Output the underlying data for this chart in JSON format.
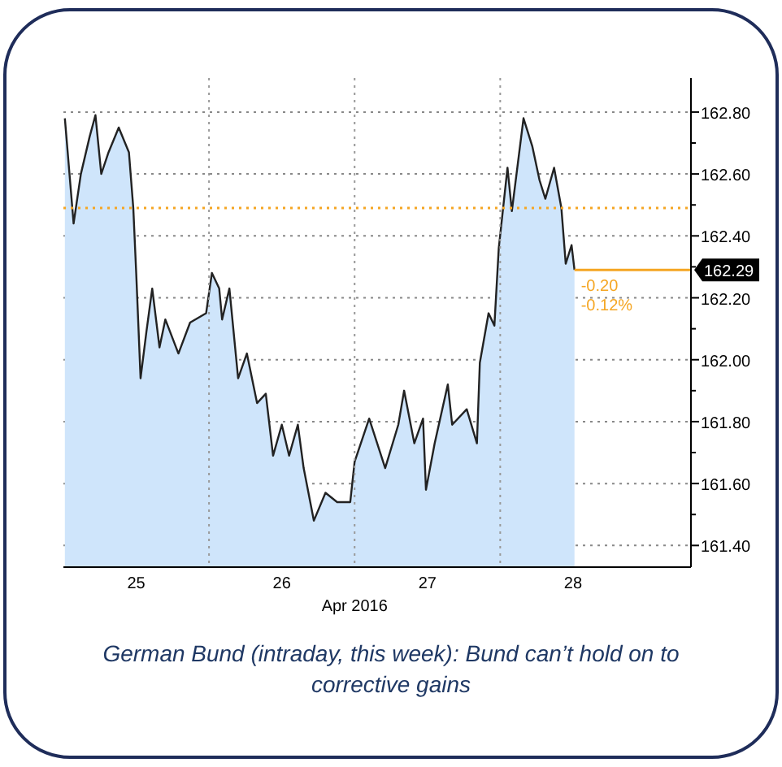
{
  "chart_data": {
    "type": "area",
    "xlabel": "Apr 2016",
    "x": [
      24.51,
      24.57,
      24.62,
      24.68,
      24.72,
      24.76,
      24.81,
      24.88,
      24.95,
      24.98,
      25.0,
      25.03,
      25.07,
      25.11,
      25.16,
      25.2,
      25.29,
      25.37,
      25.48,
      25.52,
      25.57,
      25.59,
      25.64,
      25.7,
      25.76,
      25.83,
      25.89,
      25.94,
      26.0,
      26.05,
      26.11,
      26.15,
      26.22,
      26.3,
      26.38,
      26.47,
      26.5,
      26.6,
      26.71,
      26.8,
      26.84,
      26.91,
      26.97,
      26.99,
      27.05,
      27.14,
      27.17,
      27.27,
      27.34,
      27.36,
      27.42,
      27.46,
      27.49,
      27.55,
      27.58,
      27.66,
      27.72,
      27.77,
      27.81,
      27.87,
      27.92,
      27.95,
      27.99,
      28.01
    ],
    "series": [
      {
        "color": "#cfe5fb",
        "values": [
          162.78,
          162.44,
          162.6,
          162.72,
          162.79,
          162.6,
          162.67,
          162.75,
          162.67,
          162.49,
          162.28,
          161.94,
          162.09,
          162.23,
          162.04,
          162.13,
          162.02,
          162.12,
          162.15,
          162.28,
          162.23,
          162.13,
          162.23,
          161.94,
          162.02,
          161.86,
          161.89,
          161.69,
          161.79,
          161.69,
          161.79,
          161.65,
          161.48,
          161.57,
          161.54,
          161.54,
          161.67,
          161.81,
          161.65,
          161.79,
          161.9,
          161.73,
          161.81,
          161.58,
          161.73,
          161.92,
          161.79,
          161.84,
          161.73,
          161.99,
          162.15,
          162.11,
          162.36,
          162.62,
          162.48,
          162.78,
          162.69,
          162.58,
          162.52,
          162.62,
          162.49,
          162.31,
          162.37,
          162.29
        ]
      }
    ],
    "xlim": [
      24.5,
      28.81
    ],
    "xticks": [
      25,
      26,
      27,
      28
    ],
    "ylim": [
      161.33,
      162.91
    ],
    "yticks": [
      {
        "value": 161.4,
        "label": "161.40"
      },
      {
        "value": 161.5,
        "label": null
      },
      {
        "value": 161.6,
        "label": "161.60"
      },
      {
        "value": 161.7,
        "label": null
      },
      {
        "value": 161.8,
        "label": "161.80"
      },
      {
        "value": 161.9,
        "label": null
      },
      {
        "value": 162.0,
        "label": "162.00"
      },
      {
        "value": 162.1,
        "label": null
      },
      {
        "value": 162.2,
        "label": "162.20"
      },
      {
        "value": 162.3,
        "label": null
      },
      {
        "value": 162.4,
        "label": "162.40"
      },
      {
        "value": 162.5,
        "label": null
      },
      {
        "value": 162.6,
        "label": "162.60"
      },
      {
        "value": 162.7,
        "label": null
      },
      {
        "value": 162.8,
        "label": "162.80"
      }
    ],
    "grid": "y",
    "ref_lines": [
      {
        "axis": "x",
        "value": 25.5,
        "color": "#999999",
        "line_style": "dotted"
      },
      {
        "axis": "x",
        "value": 26.5,
        "color": "#999999",
        "line_style": "dotted"
      },
      {
        "axis": "x",
        "value": 27.5,
        "color": "#999999",
        "line_style": "dotted"
      },
      {
        "axis": "y",
        "value": 162.49,
        "color": "#f5a623",
        "line_style": "dotted"
      },
      {
        "axis": "y",
        "value": 162.29,
        "label": "162.29",
        "color": "#f5a623",
        "line_style": "solid"
      }
    ],
    "annotations": [
      {
        "text": "-0.20",
        "x": 28.01,
        "y": 162.29
      },
      {
        "text": "-0.12%",
        "x": 28.01,
        "y": 162.29
      },
      "German Bund (intraday, this week): Bund can’t hold on to corrective gains"
    ]
  }
}
